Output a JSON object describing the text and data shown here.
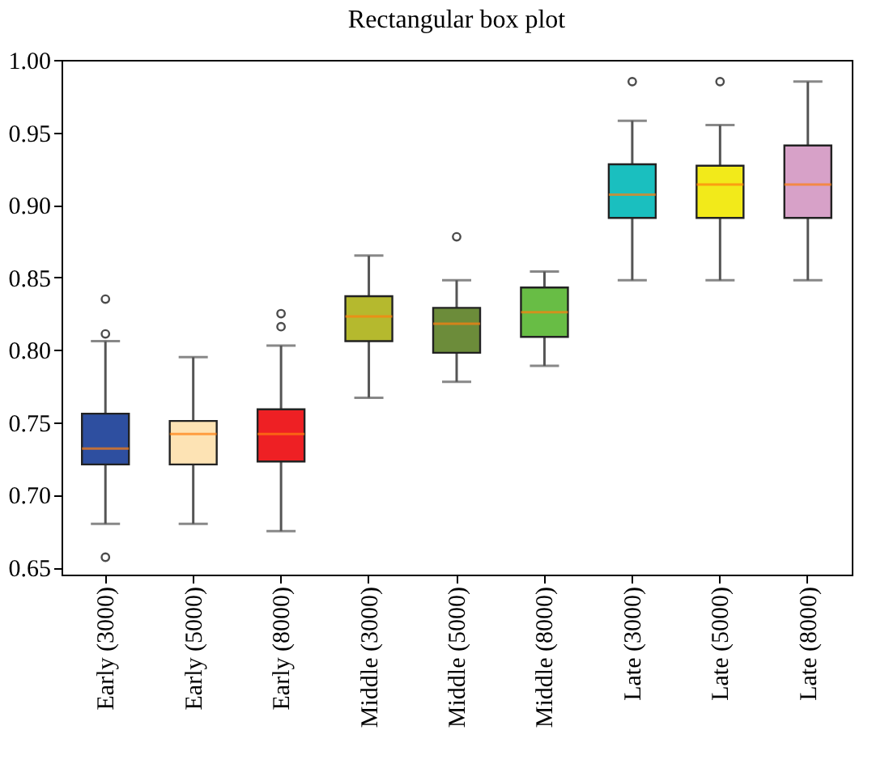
{
  "chart_data": {
    "type": "box",
    "title": "Rectangular box plot",
    "categories": [
      "Early (3000)",
      "Early (5000)",
      "Early (8000)",
      "Middle (3000)",
      "Middle (5000)",
      "Middle (8000)",
      "Late (3000)",
      "Late (5000)",
      "Late (8000)"
    ],
    "colors": [
      "#2e4fa0",
      "#fde3b4",
      "#ee2024",
      "#b5b92e",
      "#6c8c3a",
      "#68bd45",
      "#1abfbf",
      "#f2ea1a",
      "#d7a1c8"
    ],
    "boxes": [
      {
        "low": 0.68,
        "q1": 0.721,
        "median": 0.732,
        "q3": 0.756,
        "high": 0.806,
        "outliers": [
          0.835,
          0.811,
          0.657
        ]
      },
      {
        "low": 0.68,
        "q1": 0.721,
        "median": 0.742,
        "q3": 0.751,
        "high": 0.795
      },
      {
        "low": 0.675,
        "q1": 0.723,
        "median": 0.742,
        "q3": 0.759,
        "high": 0.803,
        "outliers": [
          0.825,
          0.816
        ]
      },
      {
        "low": 0.767,
        "q1": 0.806,
        "median": 0.823,
        "q3": 0.837,
        "high": 0.865
      },
      {
        "low": 0.778,
        "q1": 0.798,
        "median": 0.818,
        "q3": 0.829,
        "high": 0.848,
        "outliers": [
          0.878
        ]
      },
      {
        "low": 0.789,
        "q1": 0.809,
        "median": 0.826,
        "q3": 0.843,
        "high": 0.854
      },
      {
        "low": 0.848,
        "q1": 0.891,
        "median": 0.907,
        "q3": 0.928,
        "high": 0.958,
        "outliers": [
          0.985
        ]
      },
      {
        "low": 0.848,
        "q1": 0.891,
        "median": 0.914,
        "q3": 0.927,
        "high": 0.955,
        "outliers": [
          0.985
        ]
      },
      {
        "low": 0.848,
        "q1": 0.891,
        "median": 0.914,
        "q3": 0.941,
        "high": 0.985
      }
    ],
    "ylim": [
      0.645,
      1.0
    ],
    "yticks": [
      {
        "value": 0.65,
        "label": "0.65"
      },
      {
        "value": 0.7,
        "label": "0.70"
      },
      {
        "value": 0.75,
        "label": "0.75"
      },
      {
        "value": 0.8,
        "label": "0.80"
      },
      {
        "value": 0.85,
        "label": "0.85"
      },
      {
        "value": 0.9,
        "label": "0.90"
      },
      {
        "value": 0.95,
        "label": "0.95"
      },
      {
        "value": 1.0,
        "label": "1.00"
      }
    ]
  }
}
